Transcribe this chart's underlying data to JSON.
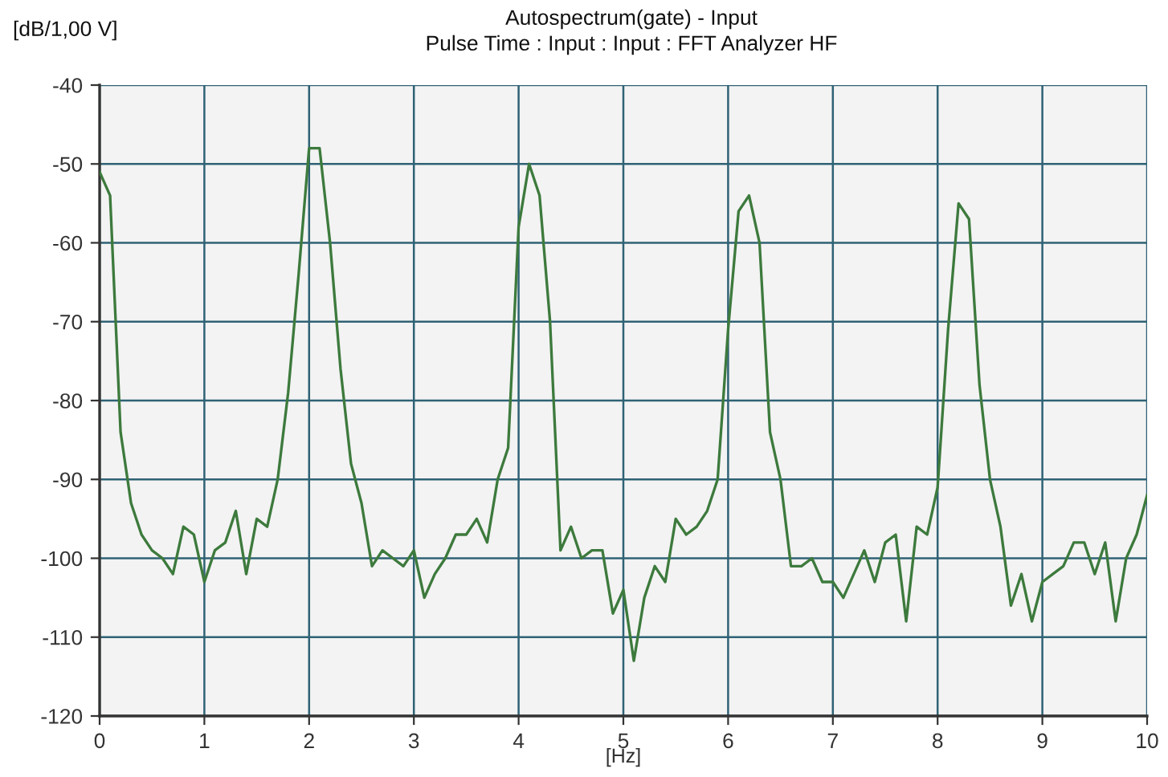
{
  "chart_data": {
    "type": "line",
    "title": "Autospectrum(gate) - Input",
    "subtitle": "Pulse Time : Input : Input : FFT Analyzer HF",
    "xlabel": "[Hz]",
    "ylabel": "[dB/1,00 V]",
    "x": [
      0,
      0.1,
      0.2,
      0.3,
      0.4,
      0.5,
      0.6,
      0.7,
      0.8,
      0.9,
      1,
      1.1,
      1.2,
      1.3,
      1.4,
      1.5,
      1.6,
      1.7,
      1.8,
      1.9,
      2,
      2.1,
      2.2,
      2.3,
      2.4,
      2.5,
      2.6,
      2.7,
      2.8,
      2.9,
      3,
      3.1,
      3.2,
      3.3,
      3.4,
      3.5,
      3.6,
      3.7,
      3.8,
      3.9,
      4,
      4.1,
      4.2,
      4.3,
      4.4,
      4.5,
      4.6,
      4.7,
      4.8,
      4.9,
      5,
      5.1,
      5.2,
      5.3,
      5.4,
      5.5,
      5.6,
      5.7,
      5.8,
      5.9,
      6,
      6.1,
      6.2,
      6.3,
      6.4,
      6.5,
      6.6,
      6.7,
      6.8,
      6.9,
      7,
      7.1,
      7.2,
      7.3,
      7.4,
      7.5,
      7.6,
      7.7,
      7.8,
      7.9,
      8,
      8.1,
      8.2,
      8.3,
      8.4,
      8.5,
      8.6,
      8.7,
      8.8,
      8.9,
      9,
      9.1,
      9.2,
      9.3,
      9.4,
      9.5,
      9.6,
      9.7,
      9.8,
      9.9,
      10
    ],
    "series": [
      {
        "color": "#3d7a3d",
        "values": [
          -51,
          -54,
          -84,
          -93,
          -97,
          -99,
          -100,
          -102,
          -96,
          -97,
          -103,
          -99,
          -98,
          -94,
          -102,
          -95,
          -96,
          -90,
          -79,
          -64,
          -48,
          -48,
          -60,
          -76,
          -88,
          -93,
          -101,
          -99,
          -100,
          -101,
          -99,
          -105,
          -102,
          -100,
          -97,
          -97,
          -95,
          -98,
          -90,
          -86,
          -58,
          -50,
          -54,
          -70,
          -99,
          -96,
          -100,
          -99,
          -99,
          -107,
          -104,
          -113,
          -105,
          -101,
          -103,
          -95,
          -97,
          -96,
          -94,
          -90,
          -71,
          -56,
          -54,
          -60,
          -84,
          -90,
          -101,
          -101,
          -100,
          -103,
          -103,
          -105,
          -102,
          -99,
          -103,
          -98,
          -97,
          -108,
          -96,
          -97,
          -91,
          -71,
          -55,
          -57,
          -78,
          -90,
          -96,
          -106,
          -102,
          -108,
          -103,
          -102,
          -101,
          -98,
          -98,
          -102,
          -98,
          -108,
          -100,
          -97,
          -92
        ]
      }
    ],
    "xlim": [
      0,
      10
    ],
    "xticks": [
      0,
      1,
      2,
      3,
      4,
      5,
      6,
      7,
      8,
      9,
      10
    ],
    "ylim": [
      -120,
      -40
    ],
    "yticks": [
      -120,
      -110,
      -100,
      -90,
      -80,
      -70,
      -60,
      -50,
      -40
    ],
    "grid": true,
    "line_style": "solid"
  }
}
